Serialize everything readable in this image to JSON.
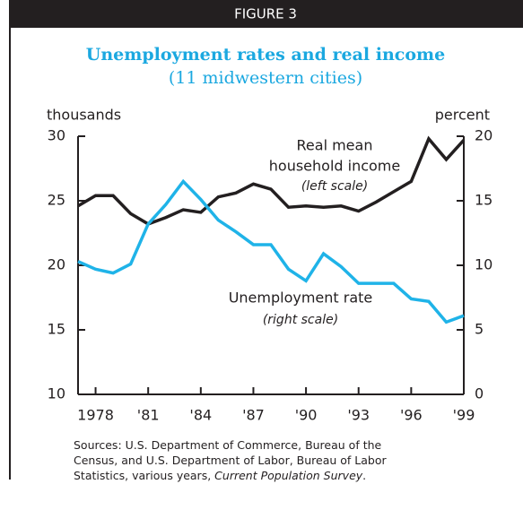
{
  "chart_data": {
    "type": "line",
    "header": "FIGURE 3",
    "title": "Unemployment rates and real income",
    "subtitle": "(11 midwestern cities)",
    "ylabel": "thousands",
    "y2label": "percent",
    "x": [
      1977,
      1978,
      1979,
      1980,
      1981,
      1982,
      1983,
      1984,
      1985,
      1986,
      1987,
      1988,
      1989,
      1990,
      1991,
      1992,
      1993,
      1994,
      1995,
      1996,
      1997,
      1998,
      1999
    ],
    "xlim": [
      1977,
      1999
    ],
    "xticks": [
      {
        "value": 1978,
        "label": "1978"
      },
      {
        "value": 1981,
        "label": "'81"
      },
      {
        "value": 1984,
        "label": "'84"
      },
      {
        "value": 1987,
        "label": "'87"
      },
      {
        "value": 1990,
        "label": "'90"
      },
      {
        "value": 1993,
        "label": "'93"
      },
      {
        "value": 1996,
        "label": "'96"
      },
      {
        "value": 1999,
        "label": "'99"
      }
    ],
    "ylim": [
      10,
      30
    ],
    "yticks": [
      10,
      15,
      20,
      25,
      30
    ],
    "y2lim": [
      0,
      20
    ],
    "y2ticks": [
      0,
      5,
      10,
      15,
      20
    ],
    "series": [
      {
        "name": "Real mean household income",
        "color": "#231f20",
        "values": [
          24.6,
          25.4,
          25.4,
          24.0,
          23.2,
          23.7,
          24.3,
          24.1,
          25.3,
          25.6,
          26.3,
          25.9,
          24.5,
          24.6,
          24.5,
          24.6,
          24.2,
          24.9,
          25.7,
          26.5,
          29.8,
          28.2,
          29.7
        ]
      },
      {
        "name": "Unemployment rate",
        "color": "#1fb3e8",
        "axis": "y2",
        "values": [
          10.3,
          9.7,
          9.4,
          10.1,
          13.2,
          14.7,
          16.5,
          15.1,
          13.5,
          12.6,
          11.6,
          11.6,
          9.7,
          8.8,
          10.9,
          9.9,
          8.6,
          8.6,
          8.6,
          7.4,
          7.2,
          5.6,
          6.1
        ]
      }
    ],
    "annotations": [
      "Real mean",
      "household income",
      "(left scale)",
      "Unemployment rate",
      "(right scale)"
    ],
    "source": [
      "Sources: U.S. Department of Commerce, Bureau of the",
      "Census, and U.S. Department of Labor, Bureau of Labor",
      "Statistics, various years, ",
      "Current Population Survey",
      "."
    ]
  }
}
